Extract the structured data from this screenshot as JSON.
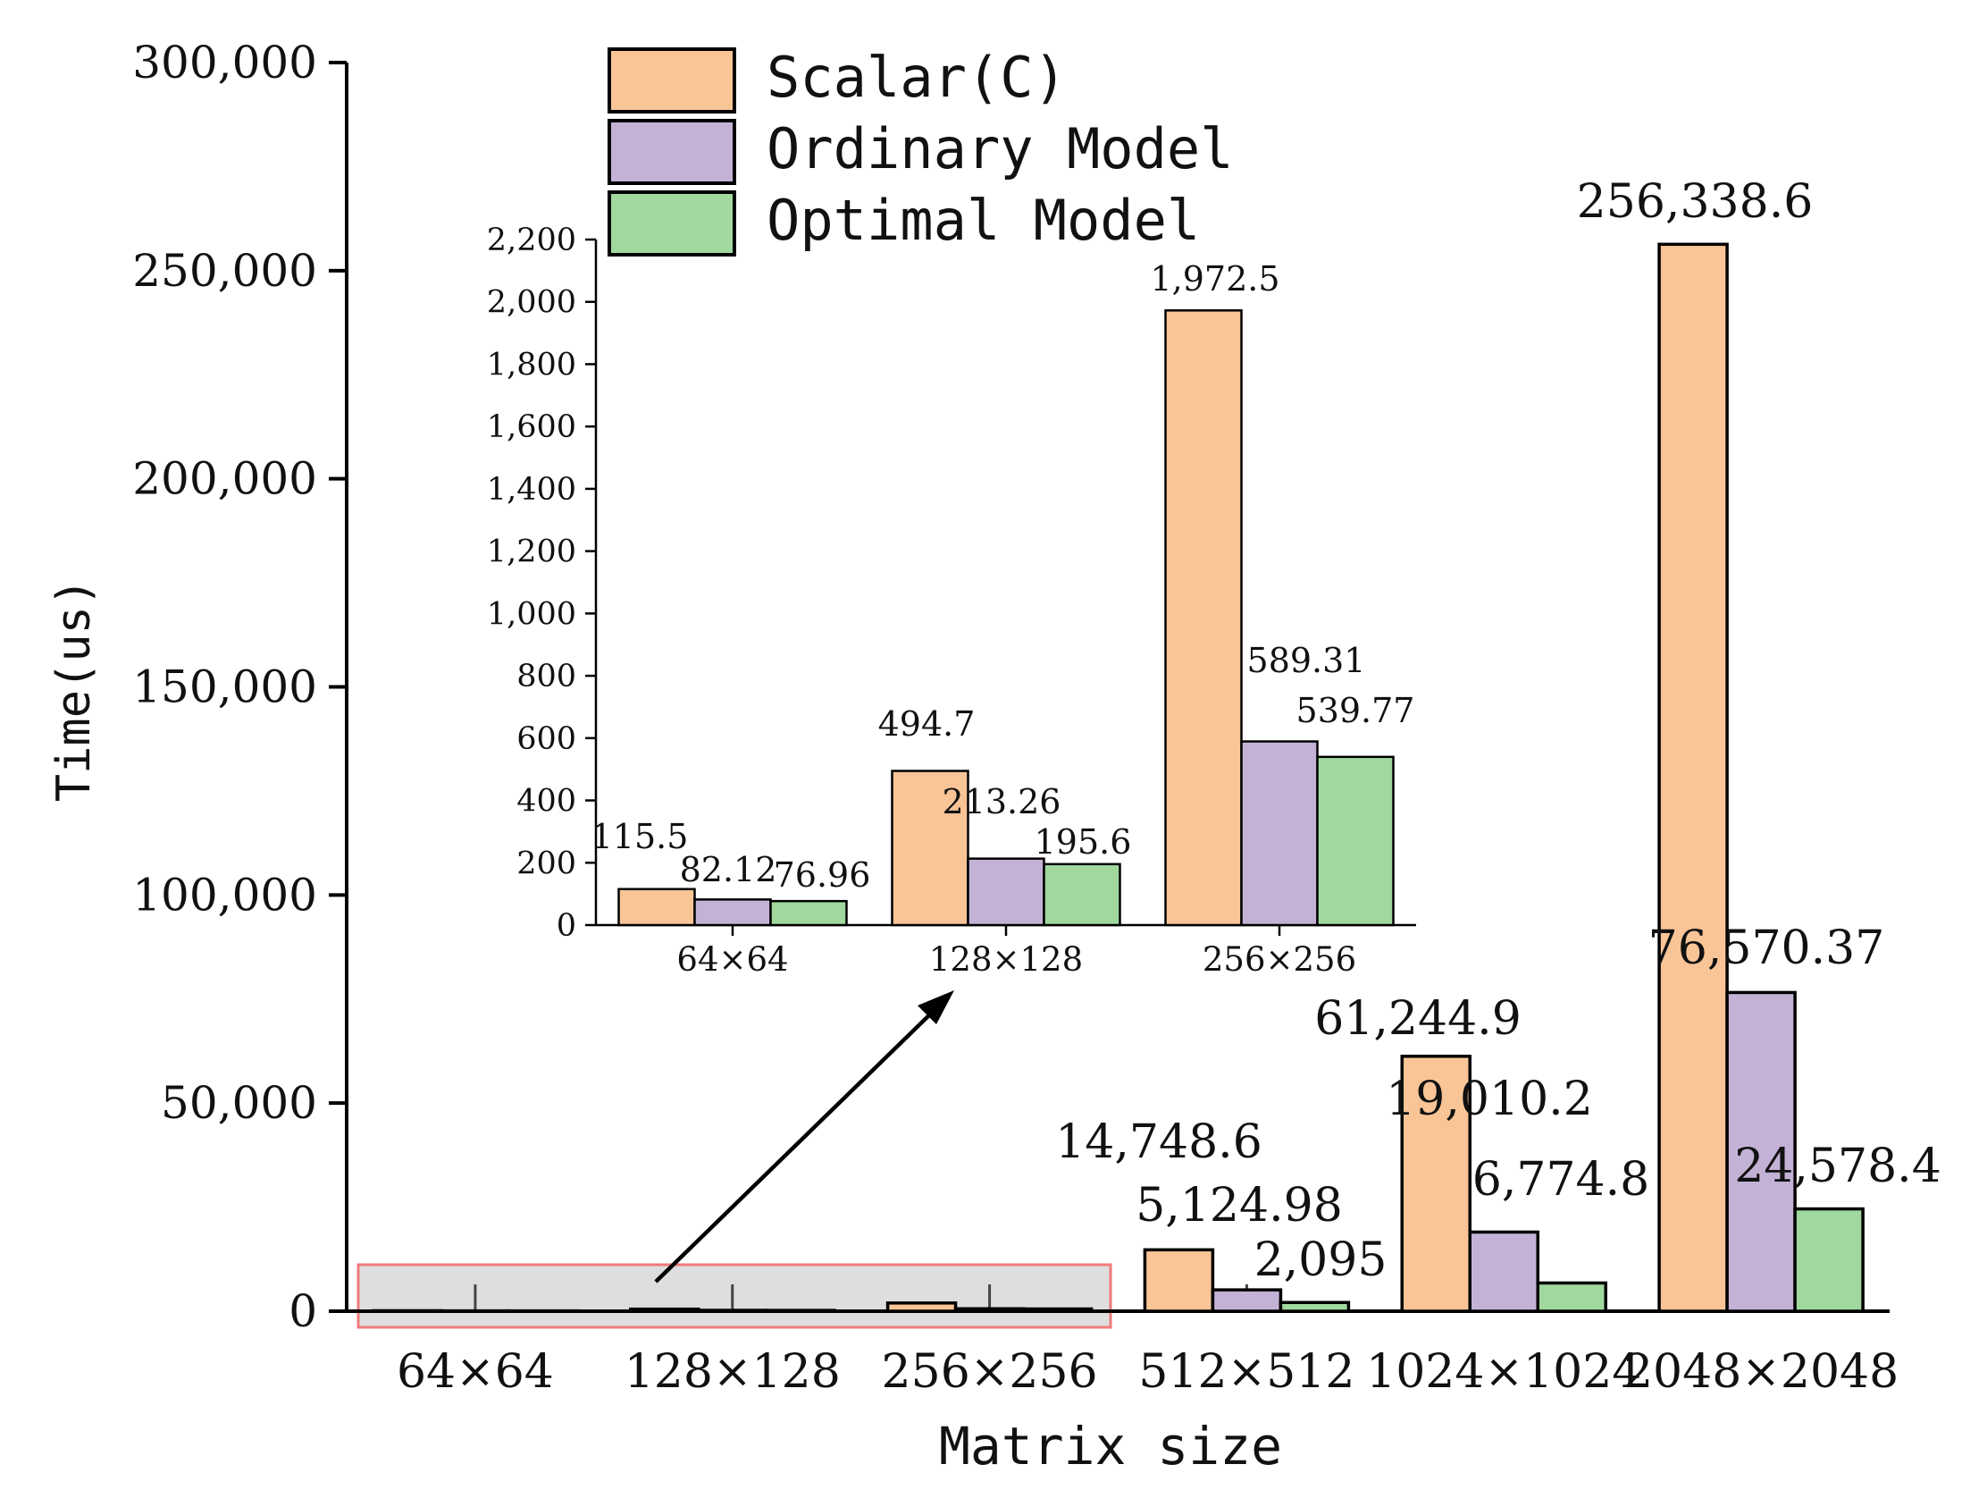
{
  "chart_data": [
    {
      "id": "main",
      "type": "bar",
      "xlabel": "Matrix size",
      "ylabel": "Time(us)",
      "ylim": [
        0,
        300000
      ],
      "y_ticks": [
        0,
        50000,
        100000,
        150000,
        200000,
        250000,
        300000
      ],
      "y_tick_labels": [
        "0",
        "50,000",
        "100,000",
        "150,000",
        "200,000",
        "250,000",
        "300,000"
      ],
      "categories": [
        "64×64",
        "128×128",
        "256×256",
        "512×512",
        "1024×1024",
        "2048×2048"
      ],
      "series": [
        {
          "name": "Scalar(C)",
          "values": [
            115.5,
            494.7,
            1972.5,
            14748.6,
            61244.9,
            256338.6
          ],
          "labels": [
            "",
            "",
            "",
            "14,748.6",
            "61,244.9",
            "256,338.6"
          ]
        },
        {
          "name": "Ordinary Model",
          "values": [
            82.12,
            213.26,
            589.31,
            5124.98,
            19010.2,
            76570.37
          ],
          "labels": [
            "",
            "",
            "",
            "5,124.98",
            "19,010.2",
            "76,570.37"
          ]
        },
        {
          "name": "Optimal Model",
          "values": [
            76.96,
            195.6,
            539.77,
            2095,
            6774.8,
            24578.4
          ],
          "labels": [
            "",
            "",
            "",
            "2,095",
            "6,774.8",
            "24,578.4"
          ]
        }
      ],
      "legend_position": "top-center"
    },
    {
      "id": "inset",
      "type": "bar",
      "ylim": [
        0,
        2200
      ],
      "y_ticks": [
        0,
        200,
        400,
        600,
        800,
        1000,
        1200,
        1400,
        1600,
        1800,
        2000,
        2200
      ],
      "y_tick_labels": [
        "0",
        "200",
        "400",
        "600",
        "800",
        "1,000",
        "1,200",
        "1,400",
        "1,600",
        "1,800",
        "2,000",
        "2,200"
      ],
      "categories": [
        "64×64",
        "128×128",
        "256×256"
      ],
      "series": [
        {
          "name": "Scalar(C)",
          "values": [
            115.5,
            494.7,
            1972.5
          ],
          "labels": [
            "115.5",
            "494.7",
            "1,972.5"
          ]
        },
        {
          "name": "Ordinary Model",
          "values": [
            82.12,
            213.26,
            589.31
          ],
          "labels": [
            "82.12",
            "213.26",
            "589.31"
          ]
        },
        {
          "name": "Optimal Model",
          "values": [
            76.96,
            195.6,
            539.77
          ],
          "labels": [
            "76.96",
            "195.6",
            "539.77"
          ]
        }
      ]
    }
  ],
  "colors": {
    "Scalar(C)": "#f9c597",
    "Ordinary Model": "#c4b2d6",
    "Optimal Model": "#a0d89e",
    "highlight_fill": "#dedede",
    "highlight_border": "#f07a7a"
  }
}
